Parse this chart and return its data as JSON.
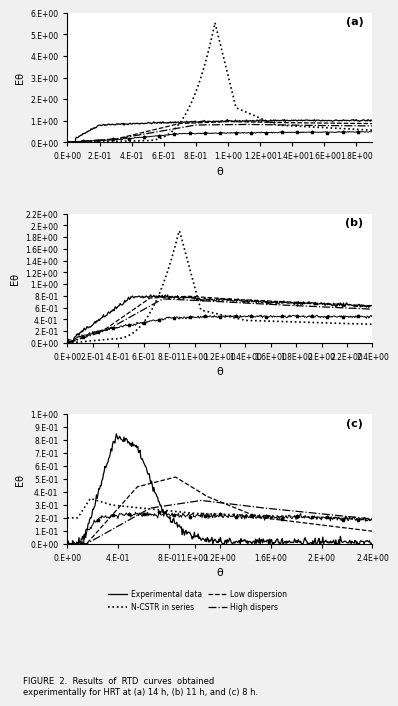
{
  "subplot_labels": [
    "(a)",
    "(b)",
    "(c)"
  ],
  "xlabel": "θ",
  "ylabel": "Eθ",
  "legend_labels": [
    "Experimental data",
    "N-CSTR in series",
    "Low dispersion",
    "High dispers"
  ],
  "background_color": "#f0f0f0",
  "panel_bg": "#ffffff",
  "xlim_a": [
    0,
    1.9
  ],
  "ylim_a": [
    0,
    6.0
  ],
  "yticks_a": [
    0,
    1.0,
    2.0,
    3.0,
    4.0,
    5.0,
    6.0
  ],
  "xticks_a": [
    0,
    0.2,
    0.4,
    0.6,
    0.8,
    1.0,
    1.2,
    1.4,
    1.6,
    1.8
  ],
  "xlim_b": [
    0,
    2.4
  ],
  "ylim_b": [
    0,
    2.2
  ],
  "yticks_b": [
    0,
    0.2,
    0.4,
    0.6,
    0.8,
    1.0,
    1.2,
    1.4,
    1.6,
    1.8,
    2.0,
    2.2
  ],
  "xticks_b": [
    0,
    0.2,
    0.4,
    0.6,
    0.8,
    1.0,
    1.2,
    1.4,
    1.6,
    1.8,
    2.0,
    2.2,
    2.4
  ],
  "xlim_c": [
    0,
    2.4
  ],
  "ylim_c": [
    0,
    1.0
  ],
  "yticks_c": [
    0,
    0.1,
    0.2,
    0.3,
    0.4,
    0.5,
    0.6,
    0.7,
    0.8,
    0.9,
    1.0
  ],
  "xticks_c": [
    0,
    0.4,
    0.8,
    1.0,
    1.2,
    1.6,
    2.0,
    2.4
  ]
}
